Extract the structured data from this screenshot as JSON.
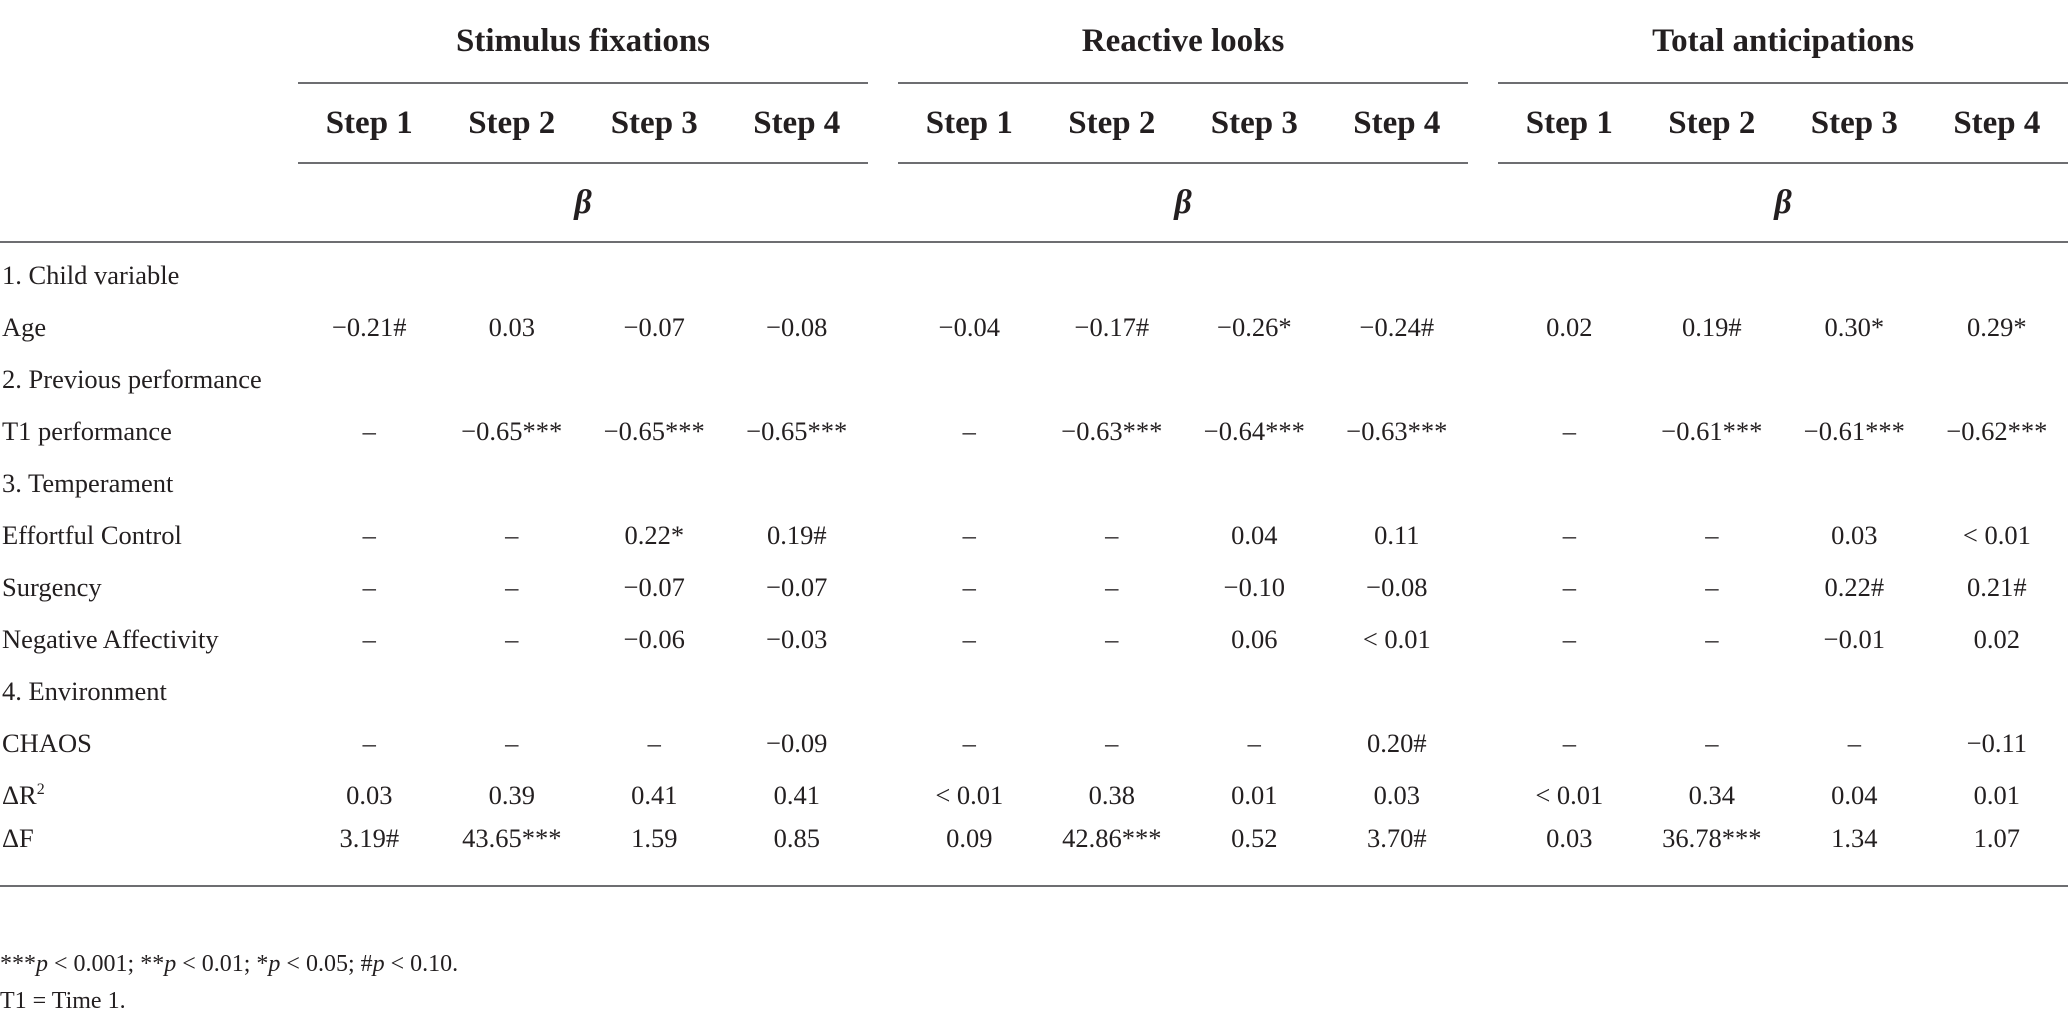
{
  "groups": [
    "Stimulus fixations",
    "Reactive looks",
    "Total anticipations"
  ],
  "steps": [
    "Step 1",
    "Step 2",
    "Step 3",
    "Step 4"
  ],
  "beta_label": "β",
  "sections": [
    {
      "title": "1. Child variable",
      "rows": [
        {
          "label": "Age",
          "values": [
            "−0.21#",
            "0.03",
            "−0.07",
            "−0.08",
            "−0.04",
            "−0.17#",
            "−0.26*",
            "−0.24#",
            "0.02",
            "0.19#",
            "0.30*",
            "0.29*"
          ]
        }
      ]
    },
    {
      "title": "2. Previous performance",
      "rows": [
        {
          "label": "T1 performance",
          "values": [
            "–",
            "−0.65***",
            "−0.65***",
            "−0.65***",
            "–",
            "−0.63***",
            "−0.64***",
            "−0.63***",
            "–",
            "−0.61***",
            "−0.61***",
            "−0.62***"
          ]
        }
      ]
    },
    {
      "title": "3. Temperament",
      "rows": [
        {
          "label": "Effortful Control",
          "values": [
            "–",
            "–",
            "0.22*",
            "0.19#",
            "–",
            "–",
            "0.04",
            "0.11",
            "–",
            "–",
            "0.03",
            "< 0.01"
          ]
        },
        {
          "label": "Surgency",
          "values": [
            "–",
            "–",
            "−0.07",
            "−0.07",
            "–",
            "–",
            "−0.10",
            "−0.08",
            "–",
            "–",
            "0.22#",
            "0.21#"
          ]
        },
        {
          "label": "Negative Affectivity",
          "values": [
            "–",
            "–",
            "−0.06",
            "−0.03",
            "–",
            "–",
            "0.06",
            "< 0.01",
            "–",
            "–",
            "−0.01",
            "0.02"
          ]
        }
      ]
    },
    {
      "title": "4. Environment",
      "rows": [
        {
          "label": "CHAOS",
          "values": [
            "–",
            "–",
            "–",
            "−0.09",
            "–",
            "–",
            "–",
            "0.20#",
            "–",
            "–",
            "–",
            "−0.11"
          ]
        }
      ]
    }
  ],
  "delta_r2": {
    "label": "ΔR",
    "superscript": "2",
    "values": [
      "0.03",
      "0.39",
      "0.41",
      "0.41",
      "< 0.01",
      "0.38",
      "0.01",
      "0.03",
      "< 0.01",
      "0.34",
      "0.04",
      "0.01"
    ]
  },
  "delta_f": {
    "label": "ΔF",
    "values": [
      "3.19#",
      "43.65***",
      "1.59",
      "0.85",
      "0.09",
      "42.86***",
      "0.52",
      "3.70#",
      "0.03",
      "36.78***",
      "1.34",
      "1.07"
    ]
  },
  "footnotes": {
    "significance": [
      {
        "stars": "***",
        "p": "p",
        "rest": " < 0.001; "
      },
      {
        "stars": "**",
        "p": "p",
        "rest": " < 0.01; "
      },
      {
        "stars": "*",
        "p": "p",
        "rest": " < 0.05; "
      },
      {
        "stars": "#",
        "p": "p",
        "rest": " < 0.10."
      }
    ],
    "abbreviation": "T1 = Time 1."
  }
}
